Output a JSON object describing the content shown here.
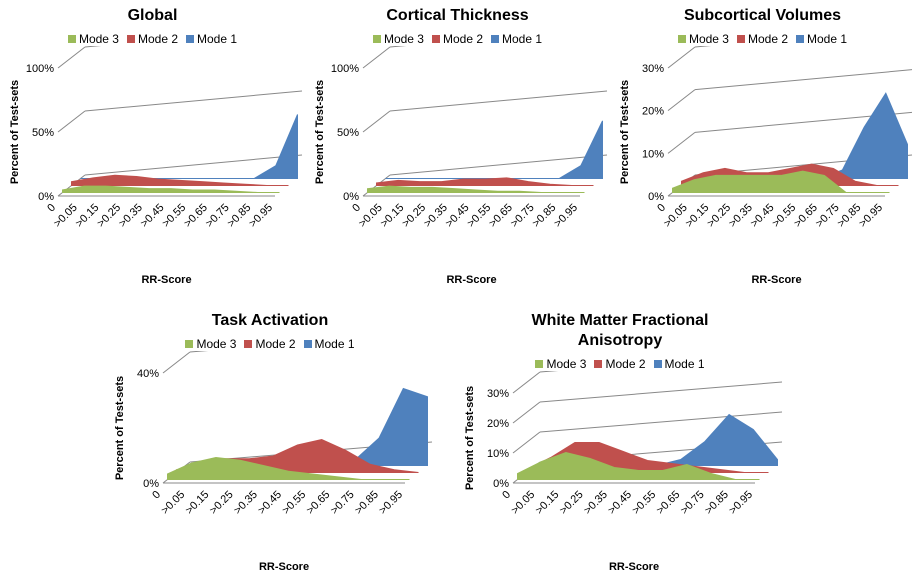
{
  "chart_data": [
    {
      "type": "area3d",
      "title": "Global",
      "xlabel": "RR-Score",
      "ylabel": "Percent of Test-sets",
      "categories": [
        "0",
        ">0.05",
        ">0.15",
        ">0.25",
        ">0.35",
        ">0.45",
        ">0.55",
        ">0.65",
        ">0.75",
        ">0.85",
        ">0.95"
      ],
      "ylim": [
        0,
        100
      ],
      "yticks": [
        {
          "value": 0,
          "label": "0%"
        },
        {
          "value": 50,
          "label": "50%"
        },
        {
          "value": 100,
          "label": "100%"
        }
      ],
      "series": [
        {
          "name": "Mode 3",
          "color": "#9bbb59",
          "values": [
            2,
            5,
            5,
            4,
            3,
            3,
            2,
            2,
            1,
            0,
            0
          ]
        },
        {
          "name": "Mode 2",
          "color": "#c0504d",
          "values": [
            3,
            6,
            8,
            7,
            5,
            4,
            3,
            2,
            1,
            0,
            0
          ]
        },
        {
          "name": "Mode 1",
          "color": "#4f81bd",
          "values": [
            0,
            0,
            0,
            0,
            0,
            0,
            0,
            0,
            0,
            10,
            50
          ]
        }
      ]
    },
    {
      "type": "area3d",
      "title": "Cortical Thickness",
      "xlabel": "RR-Score",
      "ylabel": "Percent of Test-sets",
      "categories": [
        "0",
        ">0.05",
        ">0.15",
        ">0.25",
        ">0.35",
        ">0.45",
        ">0.55",
        ">0.65",
        ">0.75",
        ">0.85",
        ">0.95"
      ],
      "ylim": [
        0,
        100
      ],
      "yticks": [
        {
          "value": 0,
          "label": "0%"
        },
        {
          "value": 50,
          "label": "50%"
        },
        {
          "value": 100,
          "label": "100%"
        }
      ],
      "series": [
        {
          "name": "Mode 3",
          "color": "#9bbb59",
          "values": [
            3,
            5,
            4,
            4,
            3,
            2,
            1,
            1,
            0,
            0,
            0
          ]
        },
        {
          "name": "Mode 2",
          "color": "#c0504d",
          "values": [
            2,
            4,
            3,
            3,
            5,
            5,
            6,
            3,
            1,
            0,
            0
          ]
        },
        {
          "name": "Mode 1",
          "color": "#4f81bd",
          "values": [
            0,
            0,
            0,
            0,
            0,
            0,
            0,
            0,
            0,
            10,
            45
          ]
        }
      ]
    },
    {
      "type": "area3d",
      "title": "Subcortical Volumes",
      "xlabel": "RR-Score",
      "ylabel": "Percent of Test-sets",
      "categories": [
        "0",
        ">0.05",
        ">0.15",
        ">0.25",
        ">0.35",
        ">0.45",
        ">0.55",
        ">0.65",
        ">0.75",
        ">0.85",
        ">0.95"
      ],
      "ylim": [
        0,
        30
      ],
      "yticks": [
        {
          "value": 0,
          "label": "0%"
        },
        {
          "value": 10,
          "label": "10%"
        },
        {
          "value": 20,
          "label": "20%"
        },
        {
          "value": 30,
          "label": "30%"
        }
      ],
      "series": [
        {
          "name": "Mode 3",
          "color": "#9bbb59",
          "values": [
            1,
            3,
            4,
            4,
            4,
            4,
            5,
            4,
            0,
            0,
            0
          ]
        },
        {
          "name": "Mode 2",
          "color": "#c0504d",
          "values": [
            1,
            3,
            4,
            3,
            3,
            4,
            5,
            4,
            1,
            0,
            0
          ]
        },
        {
          "name": "Mode 1",
          "color": "#4f81bd",
          "values": [
            0,
            0,
            0,
            0,
            0,
            0,
            0,
            2,
            12,
            20,
            8
          ]
        }
      ]
    },
    {
      "type": "area3d",
      "title": "Task Activation",
      "xlabel": "RR-Score",
      "ylabel": "Percent of Test-sets",
      "categories": [
        "0",
        ">0.05",
        ">0.15",
        ">0.25",
        ">0.35",
        ">0.45",
        ">0.55",
        ">0.65",
        ">0.75",
        ">0.85",
        ">0.95"
      ],
      "ylim": [
        0,
        40
      ],
      "yticks": [
        {
          "value": 0,
          "label": "0%"
        },
        {
          "value": 40,
          "label": "40%"
        }
      ],
      "series": [
        {
          "name": "Mode 3",
          "color": "#9bbb59",
          "values": [
            2,
            6,
            8,
            7,
            5,
            3,
            2,
            1,
            0,
            0,
            0
          ]
        },
        {
          "name": "Mode 2",
          "color": "#c0504d",
          "values": [
            1,
            3,
            5,
            5,
            6,
            10,
            12,
            8,
            3,
            1,
            0
          ]
        },
        {
          "name": "Mode 1",
          "color": "#4f81bd",
          "values": [
            0,
            0,
            0,
            0,
            0,
            0,
            0,
            2,
            10,
            28,
            25
          ]
        }
      ]
    },
    {
      "type": "area3d",
      "title": "White Matter Fractional Anisotropy",
      "xlabel": "RR-Score",
      "ylabel": "Percent of Test-sets",
      "categories": [
        "0",
        ">0.05",
        ">0.15",
        ">0.25",
        ">0.35",
        ">0.45",
        ">0.55",
        ">0.65",
        ">0.75",
        ">0.85",
        ">0.95"
      ],
      "ylim": [
        0,
        30
      ],
      "yticks": [
        {
          "value": 0,
          "label": "0%"
        },
        {
          "value": 10,
          "label": "10%"
        },
        {
          "value": 20,
          "label": "20%"
        },
        {
          "value": 30,
          "label": "30%"
        }
      ],
      "series": [
        {
          "name": "Mode 3",
          "color": "#9bbb59",
          "values": [
            2,
            6,
            9,
            7,
            4,
            3,
            3,
            5,
            2,
            0,
            0
          ]
        },
        {
          "name": "Mode 2",
          "color": "#c0504d",
          "values": [
            1,
            5,
            10,
            10,
            7,
            4,
            3,
            2,
            1,
            0,
            0
          ]
        },
        {
          "name": "Mode 1",
          "color": "#4f81bd",
          "values": [
            0,
            0,
            0,
            0,
            0,
            0,
            2,
            8,
            17,
            12,
            2
          ]
        }
      ]
    }
  ]
}
